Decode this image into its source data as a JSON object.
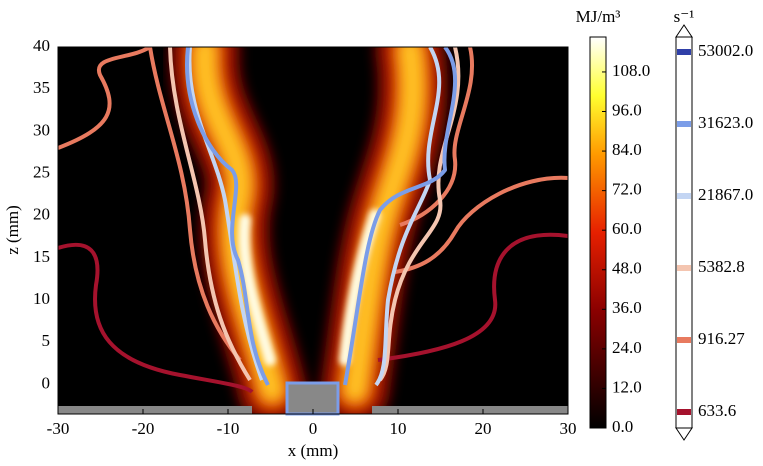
{
  "chart_data": {
    "type": "contour",
    "xlabel": "x (mm)",
    "ylabel": "z (mm)",
    "xlim": [
      -30,
      30
    ],
    "ylim": [
      -3.5,
      40
    ],
    "xticks": [
      -30,
      -20,
      -10,
      0,
      10,
      20,
      30
    ],
    "yticks": [
      0,
      5,
      10,
      15,
      20,
      25,
      30,
      35,
      40
    ],
    "colorbar": {
      "label": "MJ/m³",
      "lim": [
        0,
        118.6
      ],
      "ticks": [
        {
          "value": 0,
          "label": "0.0"
        },
        {
          "value": 12,
          "label": "12.0"
        },
        {
          "value": 24,
          "label": "24.0"
        },
        {
          "value": 36,
          "label": "36.0"
        },
        {
          "value": 48,
          "label": "48.0"
        },
        {
          "value": 60,
          "label": "60.0"
        },
        {
          "value": 72,
          "label": "72.0"
        },
        {
          "value": 84,
          "label": "84.0"
        },
        {
          "value": 96,
          "label": "96.0"
        },
        {
          "value": 108,
          "label": "108.0"
        }
      ]
    },
    "levels": {
      "label": "s⁻¹",
      "values": [
        633.6,
        916.27,
        5382.8,
        21867,
        31623,
        53002
      ],
      "value_labels": [
        "633.6",
        "916.27",
        "5382.8",
        "21867.0",
        "31623.0",
        "53002.0"
      ],
      "colors": [
        "#a5122d",
        "#e87a5f",
        "#f4c5b0",
        "#c3d5f3",
        "#7b9de8",
        "#2f3fa8"
      ]
    }
  }
}
